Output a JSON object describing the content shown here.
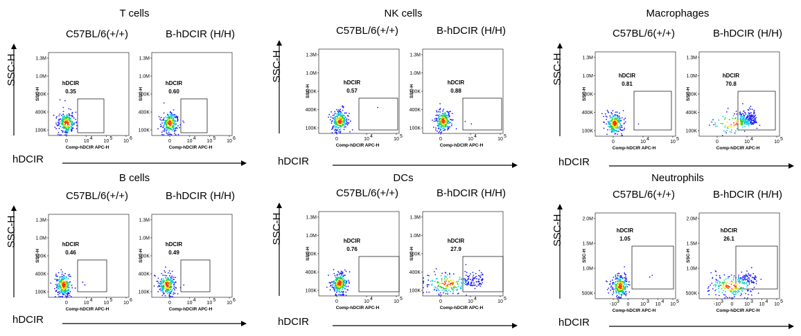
{
  "chart_data": [
    {
      "type": "scatter",
      "title": "T cells",
      "ylabel": "SSC-H",
      "xlabel": "hDCIR",
      "axis_titles": {
        "y": "SSC-H",
        "x": "Comp-hDCIR APC-H"
      },
      "y_ticks": [
        "1.3M",
        "1.0M",
        "700K",
        "400K",
        "100K"
      ],
      "x_ticks": [
        "0",
        "10",
        "10",
        "10"
      ],
      "x_tick_exponents": [
        "",
        "4",
        "5",
        "6"
      ],
      "gate_label": "hDCIR",
      "plots": [
        {
          "name": "C57BL/6(+/+)",
          "gate_percent": "0.35",
          "mean_x": 0.18,
          "mean_y": 150000
        },
        {
          "name": "B-hDCIR (H/H)",
          "gate_percent": "0.60",
          "mean_x": 0.18,
          "mean_y": 150000
        }
      ]
    },
    {
      "type": "scatter",
      "title": "NK cells",
      "ylabel": "SSC-H",
      "xlabel": "hDCIR",
      "axis_titles": {
        "y": "SSC-H",
        "x": "Comp-hDCIR APC-H"
      },
      "y_ticks": [
        "1.3M",
        "1.0M",
        "700K",
        "400K",
        "100K"
      ],
      "x_ticks": [
        "0",
        "10",
        "10"
      ],
      "x_tick_exponents": [
        "",
        "4",
        "5"
      ],
      "gate_label": "hDCIR",
      "plots": [
        {
          "name": "C57BL/6(+/+)",
          "gate_percent": "0.57",
          "mean_x": 0.22,
          "mean_y": 250000
        },
        {
          "name": "B-hDCIR (H/H)",
          "gate_percent": "0.88",
          "mean_x": 0.22,
          "mean_y": 250000
        }
      ]
    },
    {
      "type": "scatter",
      "title": "Macrophages",
      "ylabel": "SSC-H",
      "xlabel": "hDCIR",
      "axis_titles": {
        "y": "SSC-H",
        "x": "Comp-hDCIR APC-H"
      },
      "y_ticks": [
        "1.3M",
        "1.0M",
        "700K",
        "400K",
        "100K"
      ],
      "x_ticks": [
        "0",
        "10",
        "10"
      ],
      "x_tick_exponents": [
        "",
        "4",
        "5"
      ],
      "gate_label": "hDCIR",
      "plots": [
        {
          "name": "C57BL/6(+/+)",
          "gate_percent": "0.81",
          "mean_x": 0.2,
          "mean_y": 350000
        },
        {
          "name": "B-hDCIR (H/H)",
          "gate_percent": "70.8",
          "mean_x": 0.4,
          "mean_y": 350000
        }
      ]
    },
    {
      "type": "scatter",
      "title": "B cells",
      "ylabel": "SSC-H",
      "xlabel": "hDCIR",
      "axis_titles": {
        "y": "SSC-H",
        "x": "Comp-hDCIR APC-H"
      },
      "y_ticks": [
        "1.3M",
        "1.0M",
        "700K",
        "400K",
        "100K"
      ],
      "x_ticks": [
        "0",
        "10",
        "10",
        "10"
      ],
      "x_tick_exponents": [
        "",
        "4",
        "5",
        "6"
      ],
      "gate_label": "hDCIR",
      "plots": [
        {
          "name": "C57BL/6(+/+)",
          "gate_percent": "0.46",
          "mean_x": 0.14,
          "mean_y": 150000
        },
        {
          "name": "B-hDCIR (H/H)",
          "gate_percent": "0.49",
          "mean_x": 0.14,
          "mean_y": 150000
        }
      ]
    },
    {
      "type": "scatter",
      "title": "DCs",
      "ylabel": "SSC-H",
      "xlabel": "hDCIR",
      "axis_titles": {
        "y": "SSC-H",
        "x": "Comp-hDCIR APC-H"
      },
      "y_ticks": [
        "1.3M",
        "1.0M",
        "700K",
        "400K",
        "100K"
      ],
      "x_ticks": [
        "0",
        "10",
        "10"
      ],
      "x_tick_exponents": [
        "",
        "4",
        "5"
      ],
      "gate_label": "hDCIR",
      "plots": [
        {
          "name": "C57BL/6(+/+)",
          "gate_percent": "0.76",
          "mean_x": 0.22,
          "mean_y": 250000
        },
        {
          "name": "B-hDCIR (H/H)",
          "gate_percent": "27.9",
          "mean_x": 0.28,
          "mean_y": 250000
        }
      ]
    },
    {
      "type": "scatter",
      "title": "Neutrophils",
      "ylabel": "SSC-H",
      "xlabel": "hDCIR",
      "axis_titles": {
        "y": "SSC-H",
        "x": "Comp-hDCIR APC-H"
      },
      "y_ticks": [
        "2.0M",
        "1.5M",
        "1.0M",
        "500K"
      ],
      "x_ticks": [
        "-10",
        "0",
        "10",
        "10",
        "10"
      ],
      "x_tick_exponents": [
        "3",
        "",
        "3",
        "4",
        "5"
      ],
      "gate_label": "hDCIR",
      "plots": [
        {
          "name": "C57BL/6(+/+)",
          "gate_percent": "1.05",
          "mean_x": 0.28,
          "mean_y": 750000
        },
        {
          "name": "B-hDCIR (H/H)",
          "gate_percent": "26.1",
          "mean_x": 0.38,
          "mean_y": 750000
        }
      ]
    }
  ],
  "colors": {
    "outer": "#1a1aff",
    "mid": "#00c8e6",
    "core_green": "#22cc22",
    "core_yellow": "#e6e600",
    "core_red": "#ff3300"
  }
}
